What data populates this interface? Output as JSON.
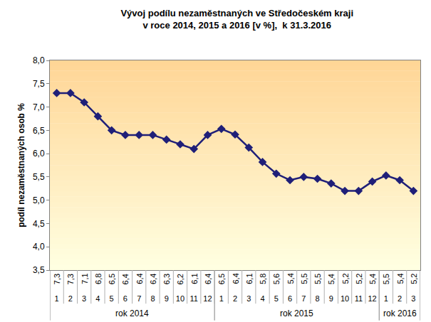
{
  "chart_data": {
    "type": "line",
    "title": "Vývoj podílu nezaměstnaných ve Středočeském kraji\nv roce 2014, 2015 a 2016 [v %],  k 31.3.2016",
    "y_label": "podíl nezaměstnaných osob %",
    "categories": [
      "1",
      "2",
      "3",
      "4",
      "5",
      "6",
      "7",
      "8",
      "9",
      "10",
      "11",
      "12",
      "1",
      "2",
      "3",
      "4",
      "5",
      "6",
      "7",
      "8",
      "9",
      "10",
      "11",
      "12",
      "1",
      "2",
      "3"
    ],
    "category_groups": [
      "rok 2014",
      "rok 2014",
      "rok 2014",
      "rok 2014",
      "rok 2014",
      "rok 2014",
      "rok 2014",
      "rok 2014",
      "rok 2014",
      "rok 2014",
      "rok 2014",
      "rok 2014",
      "rok 2015",
      "rok 2015",
      "rok 2015",
      "rok 2015",
      "rok 2015",
      "rok 2015",
      "rok 2015",
      "rok 2015",
      "rok 2015",
      "rok 2015",
      "rok 2015",
      "rok 2015",
      "rok 2016",
      "rok 2016",
      "rok 2016"
    ],
    "values": [
      7.3,
      7.3,
      7.1,
      6.8,
      6.5,
      6.4,
      6.4,
      6.4,
      6.3,
      6.2,
      6.1,
      6.4,
      6.53,
      6.41,
      6.13,
      5.82,
      5.57,
      5.43,
      5.5,
      5.46,
      5.36,
      5.2,
      5.2,
      5.4,
      5.53,
      5.43,
      5.2
    ],
    "value_labels": [
      "7,3",
      "7,3",
      "7,1",
      "6,8",
      "6,5",
      "6,4",
      "6,4",
      "6,4",
      "6,3",
      "6,2",
      "6,1",
      "6,4",
      "6,5",
      "6,4",
      "6,1",
      "5,8",
      "5,6",
      "5,4",
      "5,5",
      "5,5",
      "5,4",
      "5,2",
      "5,2",
      "5,4",
      "5,5",
      "5,4",
      "5,2"
    ],
    "color": "#1f1f78",
    "marker": "diamond",
    "ylim": [
      3.5,
      8.0
    ],
    "yticks": [
      {
        "value": 3.5,
        "label": "3,5"
      },
      {
        "value": 4.0,
        "label": "4,0"
      },
      {
        "value": 4.5,
        "label": "4,5"
      },
      {
        "value": 5.0,
        "label": "5,0"
      },
      {
        "value": 5.5,
        "label": "5,5"
      },
      {
        "value": 6.0,
        "label": "6,0"
      },
      {
        "value": 6.5,
        "label": "6,5"
      },
      {
        "value": 7.0,
        "label": "7,0"
      },
      {
        "value": 7.5,
        "label": "7,5"
      },
      {
        "value": 8.0,
        "label": "8,0"
      }
    ],
    "grid": false,
    "data_labels": true
  }
}
